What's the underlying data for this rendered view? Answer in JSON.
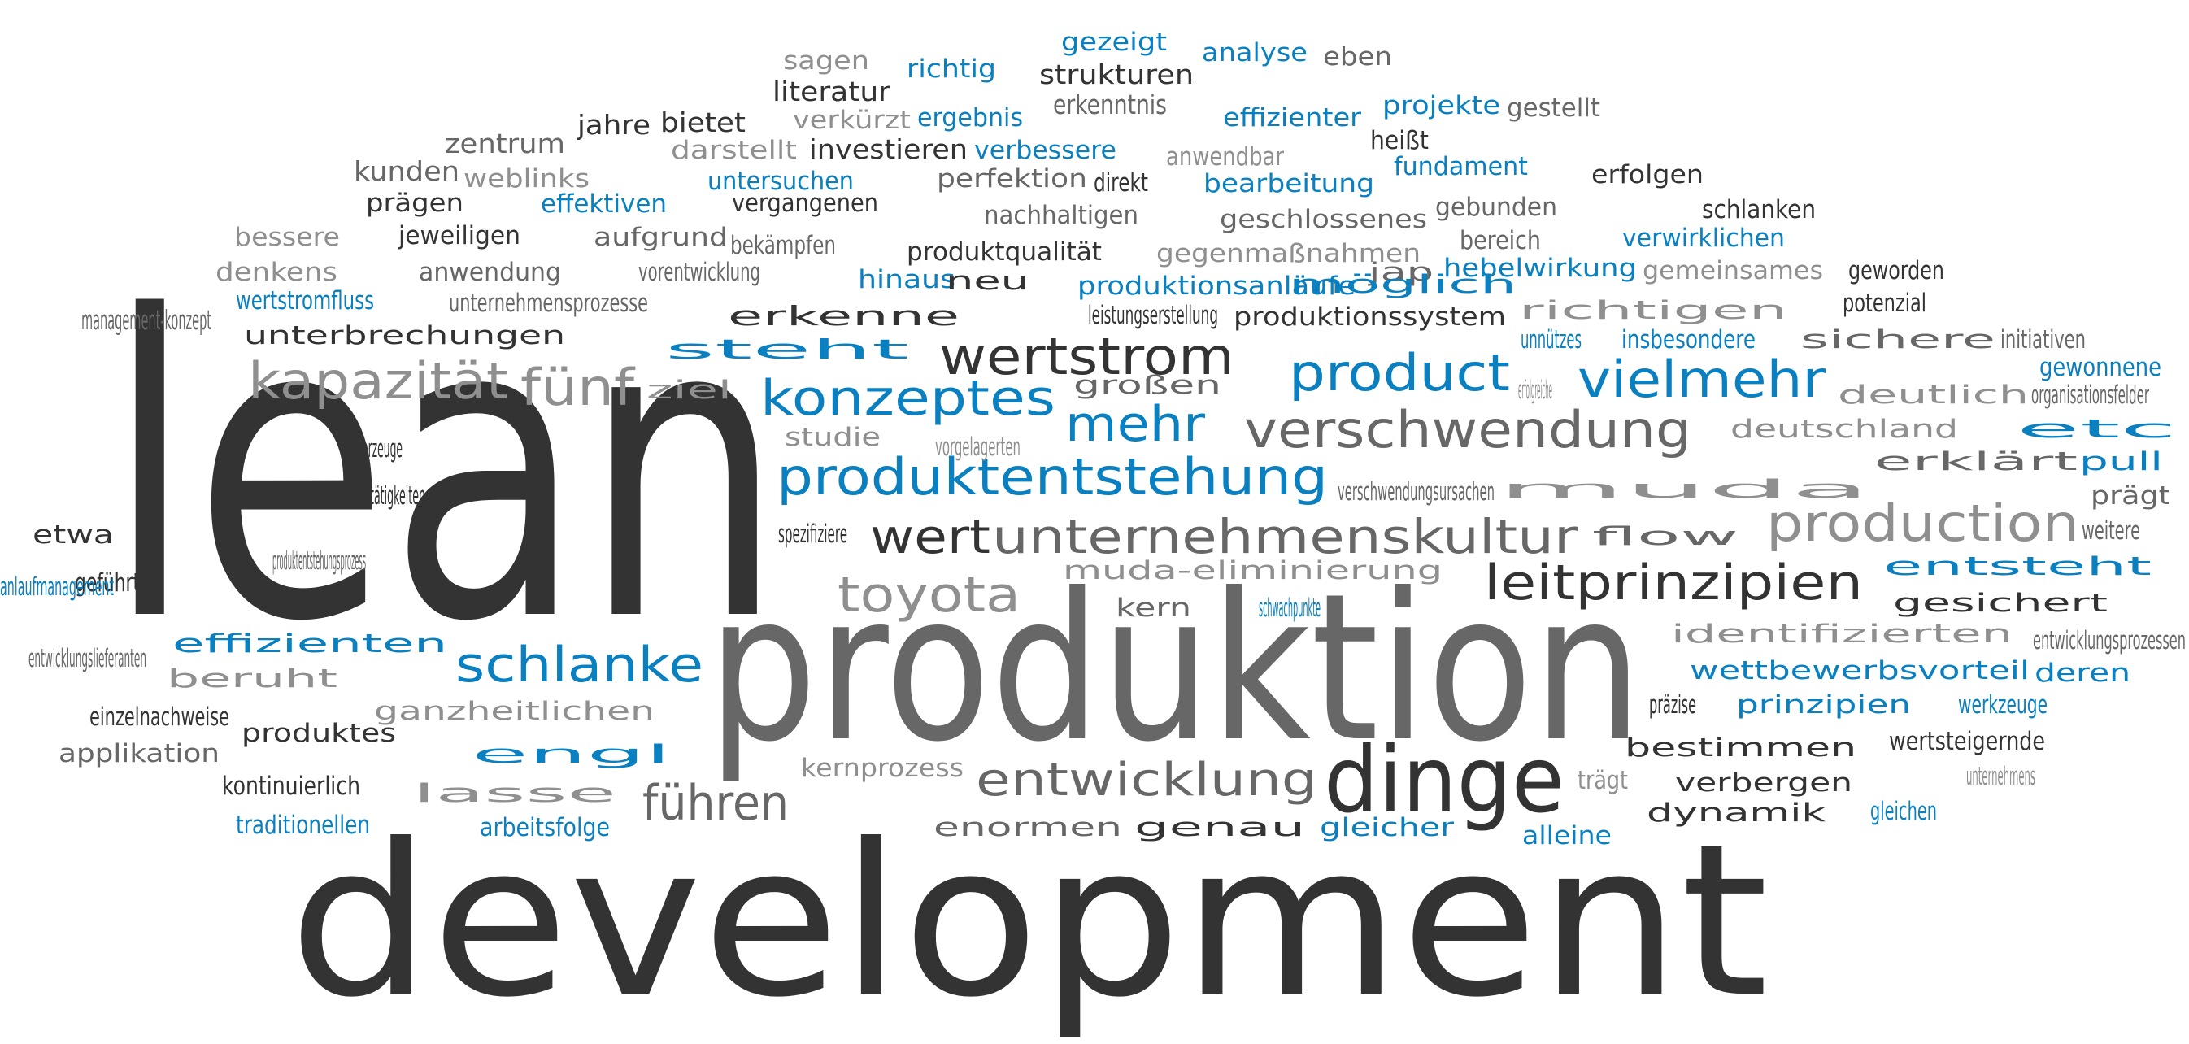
{
  "colors": {
    "dark": "#333333",
    "mid": "#676767",
    "light": "#8f8f8f",
    "blue": "#0a80c0"
  },
  "words": [
    {
      "text": "lean",
      "color": "dark"
    },
    {
      "text": "development",
      "color": "dark"
    },
    {
      "text": "produktion",
      "color": "mid"
    },
    {
      "text": "dinge",
      "color": "dark"
    },
    {
      "text": "wertstrom",
      "color": "dark"
    },
    {
      "text": "product",
      "color": "blue"
    },
    {
      "text": "vielmehr",
      "color": "blue"
    },
    {
      "text": "verschwendung",
      "color": "mid"
    },
    {
      "text": "konzeptes",
      "color": "blue"
    },
    {
      "text": "mehr",
      "color": "blue"
    },
    {
      "text": "produktentstehung",
      "color": "blue"
    },
    {
      "text": "unternehmenskultur",
      "color": "mid"
    },
    {
      "text": "wert",
      "color": "dark"
    },
    {
      "text": "production",
      "color": "light"
    },
    {
      "text": "leitprinzipien",
      "color": "dark"
    },
    {
      "text": "toyota",
      "color": "light"
    },
    {
      "text": "kapazität",
      "color": "light"
    },
    {
      "text": "fünf",
      "color": "light"
    },
    {
      "text": "schlanke",
      "color": "blue"
    },
    {
      "text": "entwicklung",
      "color": "mid"
    },
    {
      "text": "führen",
      "color": "mid"
    },
    {
      "text": "sagen",
      "color": "light"
    },
    {
      "text": "richtig",
      "color": "blue"
    },
    {
      "text": "gezeigt",
      "color": "blue"
    },
    {
      "text": "strukturen",
      "color": "dark"
    },
    {
      "text": "analyse",
      "color": "blue"
    },
    {
      "text": "eben",
      "color": "mid"
    },
    {
      "text": "literatur",
      "color": "dark"
    },
    {
      "text": "verkürzt",
      "color": "light"
    },
    {
      "text": "ergebnis",
      "color": "blue"
    },
    {
      "text": "erkenntnis",
      "color": "mid"
    },
    {
      "text": "effizienter",
      "color": "blue"
    },
    {
      "text": "projekte",
      "color": "blue"
    },
    {
      "text": "gestellt",
      "color": "mid"
    },
    {
      "text": "jahre",
      "color": "dark"
    },
    {
      "text": "bietet",
      "color": "dark"
    },
    {
      "text": "zentrum",
      "color": "mid"
    },
    {
      "text": "darstellt",
      "color": "light"
    },
    {
      "text": "investieren",
      "color": "dark"
    },
    {
      "text": "verbessere",
      "color": "blue"
    },
    {
      "text": "anwendbar",
      "color": "light"
    },
    {
      "text": "heißt",
      "color": "dark"
    },
    {
      "text": "kunden",
      "color": "mid"
    },
    {
      "text": "weblinks",
      "color": "light"
    },
    {
      "text": "untersuchen",
      "color": "blue"
    },
    {
      "text": "perfektion",
      "color": "mid"
    },
    {
      "text": "direkt",
      "color": "dark"
    },
    {
      "text": "bearbeitung",
      "color": "blue"
    },
    {
      "text": "fundament",
      "color": "blue"
    },
    {
      "text": "erfolgen",
      "color": "dark"
    },
    {
      "text": "prägen",
      "color": "dark"
    },
    {
      "text": "effektiven",
      "color": "blue"
    },
    {
      "text": "vergangenen",
      "color": "dark"
    },
    {
      "text": "nachhaltigen",
      "color": "mid"
    },
    {
      "text": "geschlossenes",
      "color": "mid"
    },
    {
      "text": "gebunden",
      "color": "mid"
    },
    {
      "text": "schlanken",
      "color": "dark"
    },
    {
      "text": "bessere",
      "color": "light"
    },
    {
      "text": "jeweiligen",
      "color": "dark"
    },
    {
      "text": "aufgrund",
      "color": "mid"
    },
    {
      "text": "bekämpfen",
      "color": "mid"
    },
    {
      "text": "bereich",
      "color": "mid"
    },
    {
      "text": "verwirklichen",
      "color": "blue"
    },
    {
      "text": "produktqualität",
      "color": "dark"
    },
    {
      "text": "gegenmaßnahmen",
      "color": "light"
    },
    {
      "text": "denkens",
      "color": "light"
    },
    {
      "text": "anwendung",
      "color": "mid"
    },
    {
      "text": "vorentwicklung",
      "color": "mid"
    },
    {
      "text": "hinaus",
      "color": "blue"
    },
    {
      "text": "neu",
      "color": "dark"
    },
    {
      "text": "produktionsanläufe",
      "color": "blue"
    },
    {
      "text": "jap",
      "color": "mid"
    },
    {
      "text": "hebelwirkung",
      "color": "blue"
    },
    {
      "text": "gemeinsames",
      "color": "light"
    },
    {
      "text": "möglich",
      "color": "blue"
    },
    {
      "text": "geworden",
      "color": "dark"
    },
    {
      "text": "wertstromfluss",
      "color": "blue"
    },
    {
      "text": "unternehmensprozesse",
      "color": "mid"
    },
    {
      "text": "erkenne",
      "color": "dark"
    },
    {
      "text": "leistungserstellung",
      "color": "dark"
    },
    {
      "text": "produktionssystem",
      "color": "dark"
    },
    {
      "text": "richtigen",
      "color": "light"
    },
    {
      "text": "potenzial",
      "color": "dark"
    },
    {
      "text": "management-konzept",
      "color": "mid"
    },
    {
      "text": "unterbrechungen",
      "color": "dark"
    },
    {
      "text": "steht",
      "color": "blue"
    },
    {
      "text": "unnützes",
      "color": "blue"
    },
    {
      "text": "insbesondere",
      "color": "blue"
    },
    {
      "text": "sichere",
      "color": "mid"
    },
    {
      "text": "initiativen",
      "color": "mid"
    },
    {
      "text": "gewonnene",
      "color": "blue"
    },
    {
      "text": "großen",
      "color": "mid"
    },
    {
      "text": "ziel",
      "color": "light"
    },
    {
      "text": "erfolgreiche",
      "color": "light"
    },
    {
      "text": "deutlich",
      "color": "light"
    },
    {
      "text": "organisationsfelder",
      "color": "mid"
    },
    {
      "text": "deutschland",
      "color": "light"
    },
    {
      "text": "etc",
      "color": "blue"
    },
    {
      "text": "erzeuge",
      "color": "dark"
    },
    {
      "text": "studie",
      "color": "light"
    },
    {
      "text": "vorgelagerten",
      "color": "light"
    },
    {
      "text": "erklärt",
      "color": "mid"
    },
    {
      "text": "pull",
      "color": "blue"
    },
    {
      "text": "tätigkeiten",
      "color": "dark"
    },
    {
      "text": "verschwendungsursachen",
      "color": "mid"
    },
    {
      "text": "muda",
      "color": "light"
    },
    {
      "text": "prägt",
      "color": "mid"
    },
    {
      "text": "etwa",
      "color": "dark"
    },
    {
      "text": "spezifiziere",
      "color": "dark"
    },
    {
      "text": "flow",
      "color": "mid"
    },
    {
      "text": "weitere",
      "color": "mid"
    },
    {
      "text": "produktentstehungsprozess",
      "color": "mid"
    },
    {
      "text": "muda-eliminierung",
      "color": "light"
    },
    {
      "text": "entsteht",
      "color": "blue"
    },
    {
      "text": "geführt",
      "color": "dark"
    },
    {
      "text": "kern",
      "color": "mid"
    },
    {
      "text": "schwachpunkte",
      "color": "blue"
    },
    {
      "text": "gesichert",
      "color": "dark"
    },
    {
      "text": "anlaufmanagement",
      "color": "blue"
    },
    {
      "text": "entwicklungslieferanten",
      "color": "mid"
    },
    {
      "text": "effizienten",
      "color": "blue"
    },
    {
      "text": "identifizierten",
      "color": "light"
    },
    {
      "text": "entwicklungsprozessen",
      "color": "mid"
    },
    {
      "text": "beruht",
      "color": "light"
    },
    {
      "text": "wettbewerbsvorteil",
      "color": "blue"
    },
    {
      "text": "deren",
      "color": "blue"
    },
    {
      "text": "ganzheitlichen",
      "color": "light"
    },
    {
      "text": "präzise",
      "color": "dark"
    },
    {
      "text": "prinzipien",
      "color": "blue"
    },
    {
      "text": "werkzeuge",
      "color": "blue"
    },
    {
      "text": "einzelnachweise",
      "color": "dark"
    },
    {
      "text": "produktes",
      "color": "dark"
    },
    {
      "text": "bestimmen",
      "color": "dark"
    },
    {
      "text": "wertsteigernde",
      "color": "dark"
    },
    {
      "text": "applikation",
      "color": "mid"
    },
    {
      "text": "engl",
      "color": "blue"
    },
    {
      "text": "kernprozess",
      "color": "light"
    },
    {
      "text": "trägt",
      "color": "light"
    },
    {
      "text": "verbergen",
      "color": "dark"
    },
    {
      "text": "unternehmens",
      "color": "light"
    },
    {
      "text": "kontinuierlich",
      "color": "dark"
    },
    {
      "text": "lasse",
      "color": "light"
    },
    {
      "text": "dynamik",
      "color": "dark"
    },
    {
      "text": "gleichen",
      "color": "blue"
    },
    {
      "text": "traditionellen",
      "color": "blue"
    },
    {
      "text": "arbeitsfolge",
      "color": "blue"
    },
    {
      "text": "enormen",
      "color": "mid"
    },
    {
      "text": "genau",
      "color": "dark"
    },
    {
      "text": "gleicher",
      "color": "blue"
    },
    {
      "text": "alleine",
      "color": "blue"
    }
  ]
}
